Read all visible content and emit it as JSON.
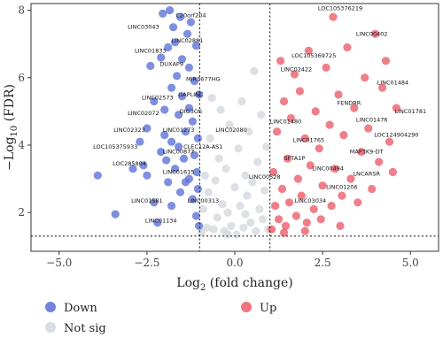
{
  "chart_data": {
    "type": "scatter",
    "title": "",
    "xlabel_main": "Log",
    "xlabel_sub": "2",
    "xlabel_rest": " (fold change)",
    "ylabel_main": "−Log",
    "ylabel_sub": "10",
    "ylabel_rest": " (FDR)",
    "xlim": [
      -5.8,
      5.8
    ],
    "ylim": [
      0.85,
      8.2
    ],
    "xticks": [
      -5.0,
      -2.5,
      0.0,
      2.5,
      5.0
    ],
    "xtick_labels": [
      "−5.0",
      "−2.5",
      "0.0",
      "2.5",
      "5.0"
    ],
    "yticks": [
      2,
      4,
      6,
      8
    ],
    "ytick_labels": [
      "2",
      "4",
      "6",
      "8"
    ],
    "thresholds": {
      "x_down": -1,
      "x_up": 1,
      "y": 1.3
    },
    "grid": false,
    "legend_position": "bottom",
    "series": [
      {
        "name": "Down",
        "color": "#5b6fd6",
        "points": [
          [
            -3.9,
            3.1
          ],
          [
            -3.4,
            1.95
          ],
          [
            -2.9,
            3.3
          ],
          [
            -2.7,
            4.1
          ],
          [
            -2.6,
            3.4
          ],
          [
            -2.5,
            3.1
          ],
          [
            -2.5,
            4.5
          ],
          [
            -2.4,
            6.35
          ],
          [
            -2.3,
            5.3
          ],
          [
            -2.3,
            2.3
          ],
          [
            -2.2,
            1.7
          ],
          [
            -2.1,
            3.8
          ],
          [
            -2.1,
            6.6
          ],
          [
            -2.05,
            7.9
          ],
          [
            -2.0,
            5.05
          ],
          [
            -2.0,
            4.3
          ],
          [
            -1.95,
            3.55
          ],
          [
            -1.9,
            2.9
          ],
          [
            -1.9,
            6.9
          ],
          [
            -1.85,
            8.0
          ],
          [
            -1.8,
            5.7
          ],
          [
            -1.8,
            4.1
          ],
          [
            -1.8,
            2.2
          ],
          [
            -1.75,
            7.5
          ],
          [
            -1.7,
            3.3
          ],
          [
            -1.7,
            7.05
          ],
          [
            -1.65,
            6.05
          ],
          [
            -1.6,
            4.9
          ],
          [
            -1.6,
            3.95
          ],
          [
            -1.55,
            2.6
          ],
          [
            -1.55,
            7.8
          ],
          [
            -1.5,
            5.45
          ],
          [
            -1.5,
            6.55
          ],
          [
            -1.45,
            3.6
          ],
          [
            -1.4,
            4.4
          ],
          [
            -1.4,
            2.9
          ],
          [
            -1.35,
            7.3
          ],
          [
            -1.3,
            5.1
          ],
          [
            -1.3,
            6.3
          ],
          [
            -1.3,
            3.0
          ],
          [
            -1.25,
            7.65
          ],
          [
            -1.2,
            2.4
          ],
          [
            -1.2,
            4.7
          ],
          [
            -1.15,
            5.9
          ],
          [
            -1.15,
            3.7
          ],
          [
            -1.1,
            6.95
          ],
          [
            -1.1,
            1.9
          ],
          [
            -1.08,
            3.2
          ],
          [
            -1.05,
            4.2
          ],
          [
            -1.05,
            2.7
          ],
          [
            -1.02,
            1.6
          ],
          [
            -1.02,
            5.5
          ]
        ]
      },
      {
        "name": "Not sig",
        "color": "#d3d7de",
        "points": [
          [
            -0.95,
            1.4
          ],
          [
            -0.9,
            2.1
          ],
          [
            -0.85,
            3.1
          ],
          [
            -0.8,
            1.55
          ],
          [
            -0.75,
            2.6
          ],
          [
            -0.7,
            4.2
          ],
          [
            -0.6,
            1.5
          ],
          [
            -0.55,
            2.95
          ],
          [
            -0.5,
            1.85
          ],
          [
            -0.45,
            3.6
          ],
          [
            -0.4,
            5.05
          ],
          [
            -0.35,
            2.25
          ],
          [
            -0.3,
            1.45
          ],
          [
            -0.25,
            3.3
          ],
          [
            -0.2,
            2.0
          ],
          [
            -0.15,
            4.6
          ],
          [
            -0.1,
            1.6
          ],
          [
            0.0,
            2.75
          ],
          [
            0.05,
            1.35
          ],
          [
            0.1,
            3.9
          ],
          [
            0.15,
            2.2
          ],
          [
            0.2,
            5.3
          ],
          [
            0.25,
            1.55
          ],
          [
            0.3,
            3.1
          ],
          [
            0.35,
            2.5
          ],
          [
            0.4,
            4.4
          ],
          [
            0.45,
            1.7
          ],
          [
            0.5,
            2.9
          ],
          [
            0.55,
            6.2
          ],
          [
            0.6,
            1.45
          ],
          [
            0.65,
            3.5
          ],
          [
            0.7,
            2.1
          ],
          [
            0.75,
            4.9
          ],
          [
            0.8,
            1.8
          ],
          [
            0.85,
            2.65
          ],
          [
            0.9,
            3.95
          ],
          [
            0.95,
            1.5
          ],
          [
            -0.65,
            5.4
          ],
          [
            0.3,
            1.95
          ],
          [
            -0.2,
            1.35
          ]
        ]
      },
      {
        "name": "Up",
        "color": "#ec5a68",
        "points": [
          [
            1.05,
            1.5
          ],
          [
            1.1,
            3.2
          ],
          [
            1.15,
            2.2
          ],
          [
            1.2,
            4.4
          ],
          [
            1.25,
            1.8
          ],
          [
            1.3,
            6.5
          ],
          [
            1.35,
            2.7
          ],
          [
            1.4,
            5.3
          ],
          [
            1.45,
            1.6
          ],
          [
            1.5,
            3.6
          ],
          [
            1.55,
            2.3
          ],
          [
            1.6,
            4.8
          ],
          [
            1.7,
            6.1
          ],
          [
            1.75,
            1.9
          ],
          [
            1.8,
            3.0
          ],
          [
            1.85,
            5.6
          ],
          [
            1.9,
            2.5
          ],
          [
            2.0,
            4.2
          ],
          [
            2.05,
            1.7
          ],
          [
            2.1,
            6.8
          ],
          [
            2.15,
            3.4
          ],
          [
            2.25,
            2.1
          ],
          [
            2.3,
            5.0
          ],
          [
            2.4,
            3.9
          ],
          [
            2.45,
            1.8
          ],
          [
            2.5,
            2.8
          ],
          [
            2.6,
            6.3
          ],
          [
            2.7,
            4.6
          ],
          [
            2.75,
            2.2
          ],
          [
            2.8,
            7.8
          ],
          [
            2.85,
            3.3
          ],
          [
            2.95,
            5.5
          ],
          [
            3.05,
            2.5
          ],
          [
            3.1,
            4.3
          ],
          [
            3.2,
            6.9
          ],
          [
            3.3,
            3.0
          ],
          [
            3.4,
            5.1
          ],
          [
            3.5,
            2.3
          ],
          [
            3.6,
            3.8
          ],
          [
            3.7,
            6.0
          ],
          [
            3.8,
            4.5
          ],
          [
            3.9,
            2.7
          ],
          [
            4.0,
            7.3
          ],
          [
            4.1,
            3.5
          ],
          [
            4.2,
            5.7
          ],
          [
            4.4,
            4.1
          ],
          [
            4.6,
            5.1
          ],
          [
            4.5,
            3.2
          ],
          [
            4.3,
            6.5
          ],
          [
            1.4,
            1.4
          ],
          [
            2.0,
            1.45
          ],
          [
            3.0,
            1.6
          ]
        ]
      }
    ],
    "annotations": [
      {
        "text": "C20orf204",
        "x": -1.25,
        "y": 7.85
      },
      {
        "text": "LINC03043",
        "x": -2.6,
        "y": 7.5
      },
      {
        "text": "LINC02881",
        "x": -1.35,
        "y": 7.1
      },
      {
        "text": "LINC01833",
        "x": -2.4,
        "y": 6.8
      },
      {
        "text": "DUXAP9",
        "x": -1.8,
        "y": 6.4
      },
      {
        "text": "MIR3677HG",
        "x": -0.9,
        "y": 5.95
      },
      {
        "text": "GAPLINC",
        "x": -1.25,
        "y": 5.5
      },
      {
        "text": "LINC02573",
        "x": -2.2,
        "y": 5.4
      },
      {
        "text": "DIO3OS",
        "x": -1.25,
        "y": 5.0
      },
      {
        "text": "LINC02072",
        "x": -2.6,
        "y": 4.95
      },
      {
        "text": "LINC01273",
        "x": -1.6,
        "y": 4.45
      },
      {
        "text": "LINC02080",
        "x": -0.1,
        "y": 4.45
      },
      {
        "text": "LINC02323",
        "x": -3.0,
        "y": 4.45
      },
      {
        "text": "LOC105375933",
        "x": -3.4,
        "y": 3.95
      },
      {
        "text": "CLEC12A-AS1",
        "x": -0.9,
        "y": 3.95
      },
      {
        "text": "LINC00877",
        "x": -1.6,
        "y": 3.8
      },
      {
        "text": "LOC285804",
        "x": -3.0,
        "y": 3.45
      },
      {
        "text": "LINC01615",
        "x": -1.6,
        "y": 3.2
      },
      {
        "text": "LINC01581",
        "x": -2.5,
        "y": 2.35
      },
      {
        "text": "LINC00313",
        "x": -0.9,
        "y": 2.35
      },
      {
        "text": "LINC01134",
        "x": -2.1,
        "y": 1.75
      },
      {
        "text": "LOC105376219",
        "x": 3.0,
        "y": 8.05
      },
      {
        "text": "LINC00402",
        "x": 3.9,
        "y": 7.3
      },
      {
        "text": "LOC105369725",
        "x": 2.25,
        "y": 6.65
      },
      {
        "text": "LINC02422",
        "x": 1.75,
        "y": 6.25
      },
      {
        "text": "LINC01484",
        "x": 4.5,
        "y": 5.85
      },
      {
        "text": "FENDRR",
        "x": 3.25,
        "y": 5.25
      },
      {
        "text": "LINC01781",
        "x": 5.0,
        "y": 5.0
      },
      {
        "text": "LINC01476",
        "x": 3.9,
        "y": 4.75
      },
      {
        "text": "LINC01480",
        "x": 1.45,
        "y": 4.7
      },
      {
        "text": "LOC124904290",
        "x": 4.6,
        "y": 4.3
      },
      {
        "text": "LINC01765",
        "x": 2.1,
        "y": 4.15
      },
      {
        "text": "MAP3K9-DT",
        "x": 3.75,
        "y": 3.8
      },
      {
        "text": "SFTA1P",
        "x": 1.7,
        "y": 3.6
      },
      {
        "text": "LINC00494",
        "x": 2.65,
        "y": 3.3
      },
      {
        "text": "LNCARSR",
        "x": 3.75,
        "y": 3.15
      },
      {
        "text": "LINC00528",
        "x": 0.85,
        "y": 3.05
      },
      {
        "text": "LINC01206",
        "x": 3.05,
        "y": 2.75
      },
      {
        "text": "LINC03034",
        "x": 2.15,
        "y": 2.35
      }
    ]
  }
}
